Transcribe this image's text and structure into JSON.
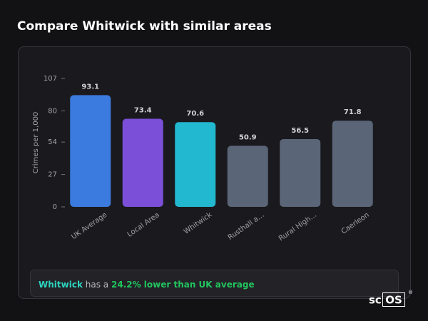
{
  "header": {
    "title": "Compare Whitwick with similar areas"
  },
  "chart_data": {
    "type": "bar",
    "y_label": "Crimes per 1,000",
    "categories": [
      "UK Average",
      "Local Area",
      "Whitwick",
      "Rusthall a…",
      "Rural High…",
      "Caerleon"
    ],
    "values": [
      93.1,
      73.4,
      70.6,
      50.9,
      56.5,
      71.8
    ],
    "colors": [
      "#3b7be0",
      "#7b4fd8",
      "#21b8d0",
      "#5a6577",
      "#5a6577",
      "#5a6577"
    ],
    "ylim": [
      0,
      107
    ],
    "yticks": [
      0,
      27,
      54,
      80,
      107
    ],
    "grid": false
  },
  "summary": {
    "area": "Whitwick",
    "text": "has a",
    "highlight": "24.2% lower than UK average"
  },
  "logo": {
    "prefix": "sc",
    "boxed": "OS",
    "mark": "®"
  }
}
